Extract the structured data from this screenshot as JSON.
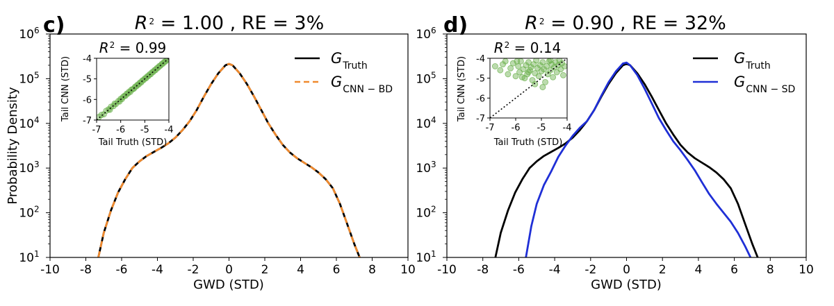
{
  "chart_data": [
    {
      "panel": "c)",
      "type": "line",
      "title": {
        "lhs": "R",
        "exp": "2",
        "rhs": " = 1.00  ,  RE = 3%"
      },
      "xlabel": "GWD (STD)",
      "ylabel": "Probability Density",
      "xlim": [
        -10,
        10
      ],
      "ylim_log10": [
        1,
        6
      ],
      "xticks": [
        "-10",
        "-8",
        "-6",
        "-4",
        "-2",
        "0",
        "2",
        "4",
        "6",
        "8",
        "10"
      ],
      "yticks": [
        {
          "base": "10",
          "exp": "1"
        },
        {
          "base": "10",
          "exp": "2"
        },
        {
          "base": "10",
          "exp": "3"
        },
        {
          "base": "10",
          "exp": "4"
        },
        {
          "base": "10",
          "exp": "5"
        },
        {
          "base": "10",
          "exp": "6"
        }
      ],
      "series": [
        {
          "name": "G_Truth",
          "label_main": "G",
          "label_sub": "Truth",
          "color": "#000000",
          "dash": "solid",
          "x": [
            -7.3,
            -7.0,
            -6.6,
            -6.2,
            -5.8,
            -5.4,
            -5.0,
            -4.6,
            -4.2,
            -3.8,
            -3.4,
            -3.0,
            -2.6,
            -2.2,
            -1.8,
            -1.4,
            -1.0,
            -0.6,
            -0.2,
            0.0,
            0.2,
            0.6,
            1.0,
            1.4,
            1.8,
            2.2,
            2.6,
            3.0,
            3.4,
            3.8,
            4.2,
            4.6,
            5.0,
            5.4,
            5.8,
            6.2,
            6.6,
            7.0,
            7.3
          ],
          "y_log10": [
            1.0,
            1.55,
            2.05,
            2.45,
            2.75,
            3.0,
            3.15,
            3.27,
            3.36,
            3.45,
            3.55,
            3.68,
            3.85,
            4.05,
            4.3,
            4.6,
            4.88,
            5.12,
            5.3,
            5.33,
            5.3,
            5.12,
            4.88,
            4.6,
            4.3,
            4.0,
            3.75,
            3.52,
            3.35,
            3.22,
            3.12,
            3.02,
            2.9,
            2.75,
            2.55,
            2.2,
            1.75,
            1.3,
            1.0
          ]
        },
        {
          "name": "G_CNN-BD",
          "label_main": "G",
          "label_sub": "CNN − BD",
          "color": "#f08a2e",
          "dash": "dashed",
          "x": [
            -7.3,
            -7.0,
            -6.6,
            -6.2,
            -5.8,
            -5.4,
            -5.0,
            -4.6,
            -4.2,
            -3.8,
            -3.4,
            -3.0,
            -2.6,
            -2.2,
            -1.8,
            -1.4,
            -1.0,
            -0.6,
            -0.2,
            0.0,
            0.2,
            0.6,
            1.0,
            1.4,
            1.8,
            2.2,
            2.6,
            3.0,
            3.4,
            3.8,
            4.2,
            4.6,
            5.0,
            5.4,
            5.8,
            6.2,
            6.6,
            7.0,
            7.3
          ],
          "y_log10": [
            1.0,
            1.55,
            2.05,
            2.45,
            2.75,
            3.0,
            3.15,
            3.27,
            3.36,
            3.45,
            3.55,
            3.68,
            3.85,
            4.05,
            4.3,
            4.6,
            4.88,
            5.12,
            5.3,
            5.33,
            5.3,
            5.12,
            4.88,
            4.6,
            4.3,
            4.0,
            3.75,
            3.52,
            3.35,
            3.22,
            3.12,
            3.02,
            2.9,
            2.75,
            2.55,
            2.2,
            1.75,
            1.3,
            1.0
          ]
        }
      ],
      "inset": {
        "type": "scatter",
        "title": {
          "lhs": "R",
          "exp": "2",
          "rhs": " = 0.99"
        },
        "xlabel": "Tail Truth (STD)",
        "ylabel": "Tail CNN (STD)",
        "xlim": [
          -7,
          -4
        ],
        "ylim": [
          -7,
          -4
        ],
        "xticks": [
          "-7",
          "-6",
          "-5",
          "-4"
        ],
        "yticks": [
          "-7",
          "-6",
          "-5",
          "-4"
        ],
        "point_color": "#6ab04c",
        "points": [
          [
            -6.9,
            -6.85
          ],
          [
            -6.8,
            -6.75
          ],
          [
            -6.7,
            -6.72
          ],
          [
            -6.6,
            -6.55
          ],
          [
            -6.5,
            -6.48
          ],
          [
            -6.45,
            -6.5
          ],
          [
            -6.4,
            -6.35
          ],
          [
            -6.3,
            -6.32
          ],
          [
            -6.25,
            -6.2
          ],
          [
            -6.2,
            -6.22
          ],
          [
            -6.1,
            -6.08
          ],
          [
            -6.05,
            -6.1
          ],
          [
            -6.0,
            -5.97
          ],
          [
            -5.95,
            -5.98
          ],
          [
            -5.9,
            -5.88
          ],
          [
            -5.85,
            -5.83
          ],
          [
            -5.8,
            -5.82
          ],
          [
            -5.75,
            -5.72
          ],
          [
            -5.7,
            -5.71
          ],
          [
            -5.65,
            -5.62
          ],
          [
            -5.6,
            -5.63
          ],
          [
            -5.55,
            -5.52
          ],
          [
            -5.5,
            -5.5
          ],
          [
            -5.45,
            -5.47
          ],
          [
            -5.4,
            -5.38
          ],
          [
            -5.35,
            -5.36
          ],
          [
            -5.3,
            -5.28
          ],
          [
            -5.25,
            -5.27
          ],
          [
            -5.2,
            -5.18
          ],
          [
            -5.15,
            -5.17
          ],
          [
            -5.1,
            -5.08
          ],
          [
            -5.05,
            -5.06
          ],
          [
            -5.0,
            -4.98
          ],
          [
            -4.95,
            -4.97
          ],
          [
            -4.9,
            -4.88
          ],
          [
            -4.85,
            -4.86
          ],
          [
            -4.8,
            -4.78
          ],
          [
            -4.75,
            -4.77
          ],
          [
            -4.7,
            -4.68
          ],
          [
            -4.65,
            -4.66
          ],
          [
            -4.6,
            -4.58
          ],
          [
            -4.55,
            -4.57
          ],
          [
            -4.5,
            -4.48
          ],
          [
            -4.45,
            -4.46
          ],
          [
            -4.4,
            -4.38
          ],
          [
            -4.35,
            -4.36
          ],
          [
            -4.3,
            -4.28
          ],
          [
            -4.25,
            -4.26
          ],
          [
            -4.2,
            -4.18
          ],
          [
            -4.15,
            -4.16
          ],
          [
            -4.1,
            -4.08
          ],
          [
            -4.05,
            -4.06
          ]
        ],
        "diagonal": [
          [
            -7,
            -7
          ],
          [
            -4,
            -4
          ]
        ]
      }
    },
    {
      "panel": "d)",
      "type": "line",
      "title": {
        "lhs": "R",
        "exp": "2",
        "rhs": " = 0.90  ,  RE = 32%"
      },
      "xlabel": "GWD (STD)",
      "ylabel": "",
      "xlim": [
        -10,
        10
      ],
      "ylim_log10": [
        1,
        6
      ],
      "xticks": [
        "-10",
        "-8",
        "-6",
        "-4",
        "-2",
        "0",
        "2",
        "4",
        "6",
        "8",
        "10"
      ],
      "yticks": [
        {
          "base": "10",
          "exp": "1"
        },
        {
          "base": "10",
          "exp": "2"
        },
        {
          "base": "10",
          "exp": "3"
        },
        {
          "base": "10",
          "exp": "4"
        },
        {
          "base": "10",
          "exp": "5"
        },
        {
          "base": "10",
          "exp": "6"
        }
      ],
      "series": [
        {
          "name": "G_Truth",
          "label_main": "G",
          "label_sub": "Truth",
          "color": "#000000",
          "dash": "solid",
          "x": [
            -7.3,
            -7.0,
            -6.6,
            -6.2,
            -5.8,
            -5.4,
            -5.0,
            -4.6,
            -4.2,
            -3.8,
            -3.4,
            -3.0,
            -2.6,
            -2.2,
            -1.8,
            -1.4,
            -1.0,
            -0.6,
            -0.2,
            0.0,
            0.2,
            0.6,
            1.0,
            1.4,
            1.8,
            2.2,
            2.6,
            3.0,
            3.4,
            3.8,
            4.2,
            4.6,
            5.0,
            5.4,
            5.8,
            6.2,
            6.6,
            7.0,
            7.3
          ],
          "y_log10": [
            1.0,
            1.55,
            2.05,
            2.45,
            2.75,
            3.0,
            3.15,
            3.27,
            3.36,
            3.45,
            3.55,
            3.68,
            3.85,
            4.05,
            4.3,
            4.6,
            4.88,
            5.12,
            5.3,
            5.33,
            5.3,
            5.12,
            4.88,
            4.6,
            4.3,
            4.0,
            3.75,
            3.52,
            3.35,
            3.22,
            3.12,
            3.02,
            2.9,
            2.75,
            2.55,
            2.2,
            1.75,
            1.3,
            1.0
          ]
        },
        {
          "name": "G_CNN-SD",
          "label_main": "G",
          "label_sub": "CNN − SD",
          "color": "#1f2fd6",
          "dash": "solid",
          "x": [
            -5.6,
            -5.3,
            -5.0,
            -4.6,
            -4.2,
            -3.8,
            -3.4,
            -3.0,
            -2.6,
            -2.2,
            -1.8,
            -1.4,
            -1.0,
            -0.6,
            -0.2,
            0.0,
            0.2,
            0.6,
            1.0,
            1.4,
            1.8,
            2.2,
            2.6,
            3.0,
            3.4,
            3.8,
            4.2,
            4.6,
            5.0,
            5.4,
            5.8,
            6.2,
            6.6,
            6.9
          ],
          "y_log10": [
            1.0,
            1.7,
            2.2,
            2.62,
            2.92,
            3.25,
            3.5,
            3.72,
            3.9,
            4.05,
            4.3,
            4.62,
            4.92,
            5.16,
            5.34,
            5.36,
            5.3,
            5.08,
            4.78,
            4.45,
            4.12,
            3.85,
            3.6,
            3.4,
            3.18,
            2.95,
            2.68,
            2.42,
            2.2,
            2.0,
            1.8,
            1.55,
            1.25,
            1.0
          ]
        }
      ],
      "inset": {
        "type": "scatter",
        "title": {
          "lhs": "R",
          "exp": "2",
          "rhs": " = 0.14"
        },
        "xlabel": "Tail Truth (STD)",
        "ylabel": "Tail CNN (STD)",
        "xlim": [
          -7,
          -4
        ],
        "ylim": [
          -7,
          -4
        ],
        "xticks": [
          "-7",
          "-6",
          "-5",
          "-4"
        ],
        "yticks": [
          "-7",
          "-6",
          "-5",
          "-4"
        ],
        "point_color": "#6ab04c",
        "points": [
          [
            -6.8,
            -4.4
          ],
          [
            -6.6,
            -4.6
          ],
          [
            -6.5,
            -4.3
          ],
          [
            -6.3,
            -4.8
          ],
          [
            -6.2,
            -4.5
          ],
          [
            -6.1,
            -4.25
          ],
          [
            -6.0,
            -4.9
          ],
          [
            -5.9,
            -4.4
          ],
          [
            -5.85,
            -4.7
          ],
          [
            -5.8,
            -4.15
          ],
          [
            -5.7,
            -4.55
          ],
          [
            -5.65,
            -5.0
          ],
          [
            -5.6,
            -4.35
          ],
          [
            -5.55,
            -4.8
          ],
          [
            -5.5,
            -4.2
          ],
          [
            -5.45,
            -4.6
          ],
          [
            -5.4,
            -4.45
          ],
          [
            -5.35,
            -5.1
          ],
          [
            -5.3,
            -4.3
          ],
          [
            -5.25,
            -4.75
          ],
          [
            -5.2,
            -4.1
          ],
          [
            -5.15,
            -4.5
          ],
          [
            -5.1,
            -4.9
          ],
          [
            -5.05,
            -4.35
          ],
          [
            -5.0,
            -4.65
          ],
          [
            -4.95,
            -4.2
          ],
          [
            -4.9,
            -4.55
          ],
          [
            -4.85,
            -5.2
          ],
          [
            -4.8,
            -4.4
          ],
          [
            -4.75,
            -4.8
          ],
          [
            -4.7,
            -4.15
          ],
          [
            -4.65,
            -4.6
          ],
          [
            -4.6,
            -4.3
          ],
          [
            -4.55,
            -4.95
          ],
          [
            -4.5,
            -4.45
          ],
          [
            -4.45,
            -4.2
          ],
          [
            -4.4,
            -4.7
          ],
          [
            -4.35,
            -4.35
          ],
          [
            -4.3,
            -4.1
          ],
          [
            -4.25,
            -4.55
          ],
          [
            -4.2,
            -4.25
          ],
          [
            -4.15,
            -4.85
          ],
          [
            -4.1,
            -4.4
          ],
          [
            -5.95,
            -4.15
          ],
          [
            -5.75,
            -4.95
          ],
          [
            -5.25,
            -5.3
          ],
          [
            -4.95,
            -5.45
          ],
          [
            -4.65,
            -4.1
          ],
          [
            -6.4,
            -4.15
          ],
          [
            -5.5,
            -4.7
          ]
        ],
        "diagonal": [
          [
            -7,
            -7
          ],
          [
            -4,
            -4
          ]
        ]
      }
    }
  ]
}
